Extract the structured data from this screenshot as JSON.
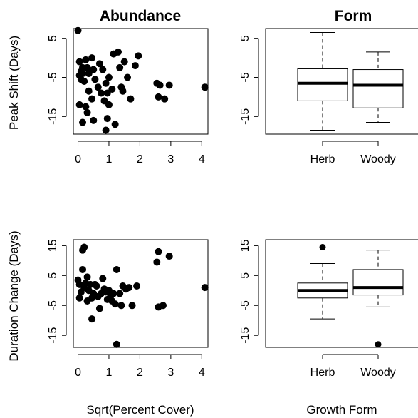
{
  "figure": {
    "titles": [
      "Abundance",
      "Form"
    ],
    "ylabels": [
      "Peak Shift (Days)",
      "Duration Change (Days)"
    ],
    "xlabels": [
      "Sqrt(Percent Cover)",
      "Growth Form"
    ]
  },
  "chart_data": [
    {
      "type": "scatter",
      "title": "Abundance",
      "xlabel": "",
      "ylabel": "Peak Shift (Days)",
      "xlim": [
        -0.15,
        4.2
      ],
      "ylim": [
        -19.5,
        7.5
      ],
      "xticks": [
        "0",
        "1",
        "2",
        "3",
        "4"
      ],
      "yticks": [
        "5",
        "-5",
        "-15"
      ],
      "xtick_values": [
        0,
        1,
        2,
        3,
        4
      ],
      "ytick_values": [
        5,
        -5,
        -15
      ],
      "points": [
        [
          0.0,
          7.0
        ],
        [
          0.05,
          -1.0
        ],
        [
          0.1,
          -3.5
        ],
        [
          0.05,
          -4.5
        ],
        [
          0.15,
          -4.0
        ],
        [
          0.25,
          -0.5
        ],
        [
          0.3,
          -2.5
        ],
        [
          0.1,
          -5.5
        ],
        [
          0.2,
          -6.0
        ],
        [
          0.35,
          -4.0
        ],
        [
          0.45,
          0.0
        ],
        [
          0.5,
          -3.0
        ],
        [
          0.55,
          -5.5
        ],
        [
          0.35,
          -8.5
        ],
        [
          0.45,
          -10.5
        ],
        [
          0.65,
          -7.5
        ],
        [
          0.75,
          -9.0
        ],
        [
          0.85,
          -11.0
        ],
        [
          0.95,
          -9.0
        ],
        [
          0.05,
          -12.0
        ],
        [
          0.25,
          -12.5
        ],
        [
          0.3,
          -14.0
        ],
        [
          0.15,
          -16.5
        ],
        [
          0.5,
          -16.0
        ],
        [
          0.7,
          -1.5
        ],
        [
          0.8,
          -3.0
        ],
        [
          0.9,
          -6.5
        ],
        [
          1.0,
          -12.0
        ],
        [
          0.95,
          -15.5
        ],
        [
          0.9,
          -18.5
        ],
        [
          1.0,
          -5.0
        ],
        [
          1.1,
          -8.0
        ],
        [
          1.2,
          -17.0
        ],
        [
          1.15,
          1.0
        ],
        [
          1.3,
          1.5
        ],
        [
          1.35,
          -2.5
        ],
        [
          1.4,
          -7.5
        ],
        [
          1.5,
          -1.0
        ],
        [
          1.6,
          -5.0
        ],
        [
          1.7,
          -10.5
        ],
        [
          1.85,
          -2.0
        ],
        [
          1.95,
          0.5
        ],
        [
          2.55,
          -6.5
        ],
        [
          2.6,
          -10.0
        ],
        [
          2.65,
          -7.0
        ],
        [
          2.8,
          -10.5
        ],
        [
          2.95,
          -7.0
        ],
        [
          4.1,
          -7.5
        ],
        [
          1.45,
          -8.5
        ],
        [
          0.15,
          -2.5
        ]
      ]
    },
    {
      "type": "boxplot",
      "title": "Form",
      "xlabel": "",
      "ylabel": "",
      "ylim": [
        -19.5,
        7.5
      ],
      "categories": [
        "Herb",
        "Woody"
      ],
      "yticks": [
        "5",
        "-5",
        "-15"
      ],
      "ytick_values": [
        5,
        -5,
        -15
      ],
      "boxes": [
        {
          "name": "Herb",
          "whisker_low": -18.5,
          "q1": -11.0,
          "median": -6.5,
          "q3": -2.8,
          "whisker_high": 6.5,
          "outliers": []
        },
        {
          "name": "Woody",
          "whisker_low": -16.5,
          "q1": -12.8,
          "median": -7.0,
          "q3": -3.0,
          "whisker_high": 1.5,
          "outliers": []
        }
      ]
    },
    {
      "type": "scatter",
      "title": "",
      "xlabel": "Sqrt(Percent Cover)",
      "ylabel": "Duration Change (Days)",
      "xlim": [
        -0.15,
        4.2
      ],
      "ylim": [
        -19,
        17
      ],
      "xticks": [
        "0",
        "1",
        "2",
        "3",
        "4"
      ],
      "yticks": [
        "15",
        "5",
        "-5",
        "-15"
      ],
      "xtick_values": [
        0,
        1,
        2,
        3,
        4
      ],
      "ytick_values": [
        15,
        5,
        -5,
        -15
      ],
      "points": [
        [
          0.0,
          3.5
        ],
        [
          0.05,
          2.0
        ],
        [
          0.1,
          -0.5
        ],
        [
          0.05,
          -2.5
        ],
        [
          0.15,
          7.0
        ],
        [
          0.15,
          13.5
        ],
        [
          0.2,
          14.5
        ],
        [
          0.25,
          2.5
        ],
        [
          0.3,
          4.5
        ],
        [
          0.35,
          0.0
        ],
        [
          0.4,
          2.0
        ],
        [
          0.45,
          -2.5
        ],
        [
          0.5,
          -1.0
        ],
        [
          0.55,
          2.0
        ],
        [
          0.6,
          1.5
        ],
        [
          0.65,
          -2.0
        ],
        [
          0.3,
          -3.5
        ],
        [
          0.45,
          -9.5
        ],
        [
          0.75,
          -1.0
        ],
        [
          0.8,
          4.0
        ],
        [
          0.85,
          0.5
        ],
        [
          0.9,
          -0.5
        ],
        [
          0.95,
          -3.0
        ],
        [
          1.0,
          0.0
        ],
        [
          0.7,
          -6.0
        ],
        [
          1.05,
          -2.0
        ],
        [
          1.1,
          -3.5
        ],
        [
          1.15,
          -1.0
        ],
        [
          1.25,
          7.0
        ],
        [
          1.2,
          -4.5
        ],
        [
          1.25,
          -18.0
        ],
        [
          1.4,
          -5.0
        ],
        [
          1.35,
          -1.0
        ],
        [
          1.45,
          1.5
        ],
        [
          1.55,
          0.5
        ],
        [
          1.65,
          1.0
        ],
        [
          1.75,
          -5.0
        ],
        [
          1.9,
          1.5
        ],
        [
          2.6,
          13.0
        ],
        [
          2.55,
          9.5
        ],
        [
          2.6,
          -5.5
        ],
        [
          2.75,
          -5.0
        ],
        [
          2.95,
          11.5
        ],
        [
          4.1,
          1.0
        ],
        [
          0.2,
          1.0
        ]
      ]
    },
    {
      "type": "boxplot",
      "title": "",
      "xlabel": "Growth Form",
      "ylabel": "",
      "ylim": [
        -19,
        17
      ],
      "categories": [
        "Herb",
        "Woody"
      ],
      "yticks": [
        "15",
        "5",
        "-5",
        "-15"
      ],
      "ytick_values": [
        15,
        5,
        -5,
        -15
      ],
      "boxes": [
        {
          "name": "Herb",
          "whisker_low": -9.5,
          "q1": -2.5,
          "median": 0.0,
          "q3": 2.5,
          "whisker_high": 9.0,
          "outliers": [
            14.5
          ]
        },
        {
          "name": "Woody",
          "whisker_low": -5.5,
          "q1": -1.5,
          "median": 1.0,
          "q3": 7.0,
          "whisker_high": 13.5,
          "outliers": [
            -18.0
          ]
        }
      ]
    }
  ]
}
